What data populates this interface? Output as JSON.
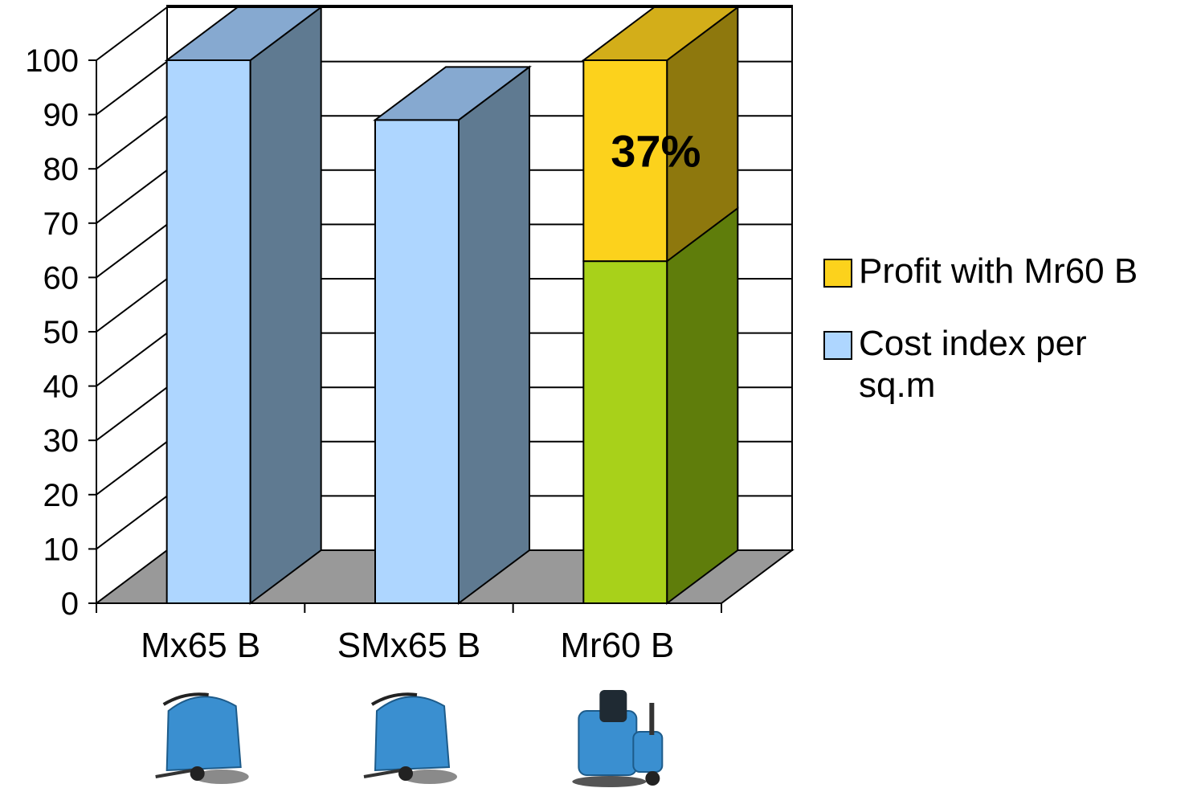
{
  "chart_data": {
    "type": "bar",
    "stacked": true,
    "three_d": true,
    "categories": [
      "Mx65 B",
      "SMx65 B",
      "Mr60 B"
    ],
    "series": [
      {
        "name": "Cost index per sq.m",
        "values": [
          100,
          89,
          63
        ],
        "colors": [
          "#aed6ff",
          "#aed6ff",
          "#a8d11a"
        ],
        "side_colors": [
          "#5f7a91",
          "#5f7a91",
          "#5f7d0b"
        ],
        "top_color": "#86a9d0"
      },
      {
        "name": "Profit with Mr60 B",
        "values": [
          0,
          0,
          37
        ],
        "colors": [
          "#fcd21c",
          "#fcd21c",
          "#fcd21c"
        ],
        "side_colors": [
          "#8e780d",
          "#8e780d",
          "#8e780d"
        ],
        "top_color": "#d3ae19"
      }
    ],
    "annotations": [
      {
        "text": "37%",
        "category": "Mr60 B",
        "series": "Profit with Mr60 B"
      }
    ],
    "ylim": [
      0,
      100
    ],
    "yticks": [
      "0",
      "10",
      "20",
      "30",
      "40",
      "50",
      "60",
      "70",
      "80",
      "90",
      "100"
    ],
    "grid": true,
    "legend_position": "right",
    "floor_color": "#999999"
  },
  "legend": {
    "items": [
      {
        "label": "Profit with Mr60 B",
        "color": "#fcd21c"
      },
      {
        "label": "Cost index per\nsq.m",
        "color": "#aed6ff"
      }
    ]
  },
  "product_images": [
    "scrubber-walk-behind-icon",
    "scrubber-walk-behind-icon",
    "scrubber-ride-on-icon"
  ]
}
